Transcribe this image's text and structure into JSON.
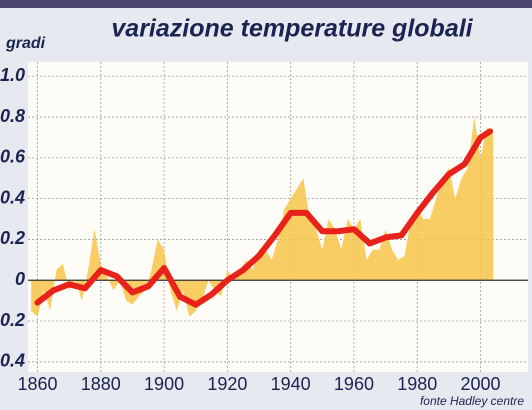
{
  "chart_data": {
    "type": "area_line",
    "title": "variazione temperature globali",
    "y_label": "gradi",
    "source": "fonte Hadley centre",
    "xlim": [
      1857,
      2015
    ],
    "ylim": [
      -0.45,
      1.07
    ],
    "xticks": [
      1860,
      1880,
      1900,
      1920,
      1940,
      1960,
      1980,
      2000
    ],
    "yticks": [
      {
        "value": 1,
        "label": "1.0"
      },
      0.8,
      0.6,
      0.4,
      0.2,
      0,
      -0.2,
      -0.4
    ],
    "grid": true,
    "series": [
      {
        "color": "#f7c64a",
        "x": [
          1858,
          1860,
          1862,
          1864,
          1866,
          1868,
          1870,
          1872,
          1874,
          1876,
          1878,
          1880,
          1882,
          1884,
          1886,
          1888,
          1890,
          1892,
          1894,
          1896,
          1898,
          1900,
          1902,
          1904,
          1906,
          1908,
          1910,
          1912,
          1914,
          1916,
          1918,
          1920,
          1922,
          1924,
          1926,
          1928,
          1930,
          1932,
          1934,
          1936,
          1938,
          1940,
          1942,
          1944,
          1946,
          1948,
          1950,
          1952,
          1954,
          1956,
          1958,
          1960,
          1962,
          1964,
          1966,
          1968,
          1970,
          1972,
          1974,
          1976,
          1978,
          1980,
          1982,
          1984,
          1986,
          1988,
          1990,
          1992,
          1994,
          1996,
          1998,
          2000,
          2002,
          2004
        ],
        "values": [
          -0.15,
          -0.18,
          -0.05,
          -0.15,
          0.05,
          0.08,
          -0.05,
          0.0,
          -0.1,
          0.05,
          0.25,
          0.08,
          0.02,
          -0.05,
          0.0,
          -0.1,
          -0.12,
          -0.08,
          -0.05,
          0.05,
          0.2,
          0.15,
          -0.05,
          -0.15,
          -0.05,
          -0.18,
          -0.15,
          -0.1,
          0.0,
          -0.05,
          -0.08,
          0.05,
          0.0,
          0.05,
          0.1,
          0.05,
          0.15,
          0.15,
          0.1,
          0.2,
          0.35,
          0.4,
          0.45,
          0.5,
          0.3,
          0.25,
          0.15,
          0.3,
          0.25,
          0.15,
          0.3,
          0.25,
          0.3,
          0.1,
          0.15,
          0.15,
          0.25,
          0.15,
          0.1,
          0.12,
          0.3,
          0.35,
          0.3,
          0.3,
          0.4,
          0.5,
          0.55,
          0.4,
          0.5,
          0.55,
          0.8,
          0.6,
          0.75,
          0.72
        ]
      },
      {
        "color": "#e8221a",
        "x": [
          1860,
          1865,
          1870,
          1875,
          1880,
          1885,
          1890,
          1895,
          1900,
          1905,
          1910,
          1915,
          1920,
          1925,
          1930,
          1935,
          1940,
          1945,
          1950,
          1955,
          1960,
          1965,
          1970,
          1975,
          1980,
          1985,
          1990,
          1995,
          2000,
          2003
        ],
        "values": [
          -0.11,
          -0.05,
          -0.02,
          -0.04,
          0.05,
          0.02,
          -0.06,
          -0.03,
          0.06,
          -0.08,
          -0.12,
          -0.07,
          0.0,
          0.05,
          0.12,
          0.22,
          0.33,
          0.33,
          0.24,
          0.24,
          0.25,
          0.18,
          0.21,
          0.22,
          0.33,
          0.43,
          0.52,
          0.57,
          0.7,
          0.73
        ]
      }
    ]
  }
}
